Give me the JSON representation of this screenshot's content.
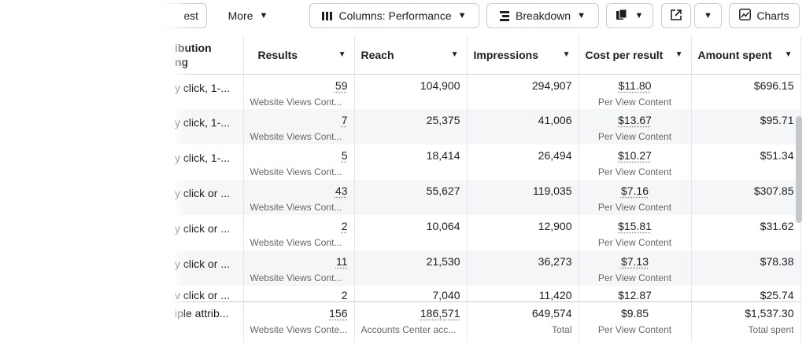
{
  "toolbar": {
    "partial_button": "est",
    "more": "More",
    "columns": "Columns: Performance",
    "breakdown": "Breakdown",
    "charts": "Charts"
  },
  "table": {
    "headers": {
      "attribution_line1": "ibution",
      "attribution_line2": "ng",
      "results": "Results",
      "reach": "Reach",
      "impressions": "Impressions",
      "cost": "Cost per result",
      "spent": "Amount spent"
    },
    "rows": [
      {
        "attr": "y click, 1-...",
        "results": "59",
        "results_sub": "Website Views Cont...",
        "reach": "104,900",
        "impressions": "294,907",
        "cost": "$11.80",
        "cost_sub": "Per View Content",
        "spent": "$696.15"
      },
      {
        "attr": "y click, 1-...",
        "results": "7",
        "results_sub": "Website Views Cont...",
        "reach": "25,375",
        "impressions": "41,006",
        "cost": "$13.67",
        "cost_sub": "Per View Content",
        "spent": "$95.71"
      },
      {
        "attr": "y click, 1-...",
        "results": "5",
        "results_sub": "Website Views Cont...",
        "reach": "18,414",
        "impressions": "26,494",
        "cost": "$10.27",
        "cost_sub": "Per View Content",
        "spent": "$51.34"
      },
      {
        "attr": "y click or ...",
        "results": "43",
        "results_sub": "Website Views Cont...",
        "reach": "55,627",
        "impressions": "119,035",
        "cost": "$7.16",
        "cost_sub": "Per View Content",
        "spent": "$307.85"
      },
      {
        "attr": "y click or ...",
        "results": "2",
        "results_sub": "Website Views Cont...",
        "reach": "10,064",
        "impressions": "12,900",
        "cost": "$15.81",
        "cost_sub": "Per View Content",
        "spent": "$31.62"
      },
      {
        "attr": "y click or ...",
        "results": "11",
        "results_sub": "Website Views Cont...",
        "reach": "21,530",
        "impressions": "36,273",
        "cost": "$7.13",
        "cost_sub": "Per View Content",
        "spent": "$78.38"
      }
    ],
    "partial_row": {
      "attr": "v click or ...",
      "results": "2",
      "reach": "7,040",
      "impressions": "11,420",
      "cost": "$12.87",
      "spent": "$25.74"
    },
    "total": {
      "attr": "iple attrib...",
      "results": "156",
      "results_sub": "Website Views Conte...",
      "reach": "186,571",
      "reach_sub": "Accounts Center acc...",
      "impressions": "649,574",
      "impressions_sub": "Total",
      "cost": "$9.85",
      "cost_sub": "Per View Content",
      "spent": "$1,537.30",
      "spent_sub": "Total spent"
    }
  }
}
